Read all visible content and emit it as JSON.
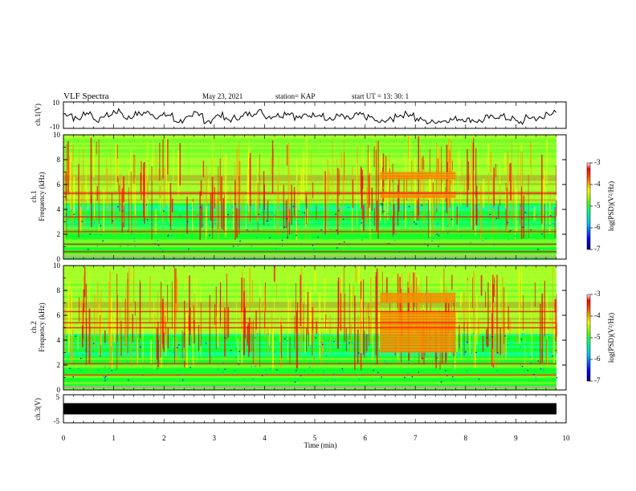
{
  "header": {
    "title": "VLF  Spectra",
    "date": "May 23, 2021",
    "station": "station= KAP",
    "start_ut": "start  UT  =   13: 30: 1"
  },
  "chart_data": [
    {
      "type": "line",
      "name": "ch1-waveform",
      "ylabel": "ch.1(V)",
      "ylim": [
        -10,
        10
      ],
      "yticks": [
        "10",
        "-10"
      ],
      "x": [
        0,
        0.2,
        0.4,
        0.6,
        0.8,
        1.0,
        1.2,
        1.4,
        1.6,
        1.8,
        2.0,
        2.2,
        2.4,
        2.6,
        2.8,
        3.0,
        3.2,
        3.4,
        3.6,
        3.8,
        4.0,
        4.2,
        4.4,
        4.6,
        4.8,
        5.0,
        5.2,
        5.4,
        5.6,
        5.8,
        6.0,
        6.2,
        6.4,
        6.6,
        6.8,
        7.0,
        7.2,
        7.4,
        7.6,
        7.8,
        8.0,
        8.2,
        8.4,
        8.6,
        8.8,
        9.0,
        9.2,
        9.4,
        9.6,
        9.8
      ],
      "y": [
        1,
        -3,
        2,
        -4,
        0,
        3,
        -2,
        1,
        2,
        -1,
        0,
        -5,
        -3,
        2,
        -6,
        0,
        -4,
        -2,
        1,
        3,
        -1,
        0,
        2,
        -2,
        0,
        1,
        -4,
        -1,
        -3,
        0,
        -2,
        -6,
        -4,
        0,
        1,
        -4,
        -6,
        -5,
        -4,
        -3,
        -4,
        -5,
        -2,
        -1,
        -3,
        -6,
        -2,
        -3,
        2,
        1
      ]
    },
    {
      "type": "heatmap",
      "name": "ch1-spectrogram",
      "ylabel": "ch.1 Frequency (kHz)",
      "ylim": [
        0,
        10
      ],
      "yticks": [
        "0",
        "2",
        "4",
        "6",
        "8",
        "10"
      ],
      "colorbar": {
        "label": "log(PSD)(V²/Hz)",
        "range": [
          -7,
          -3
        ],
        "ticks": [
          "-3",
          "-4",
          "-5",
          "-6",
          "-7"
        ]
      },
      "features": [
        {
          "kind": "band",
          "freq_khz": [
            6.4,
            7.0
          ],
          "time_min": [
            6.3,
            7.8
          ]
        },
        {
          "kind": "band",
          "freq_khz": [
            4.9,
            5.4
          ],
          "time_min": [
            6.3,
            7.8
          ]
        },
        {
          "kind": "line",
          "freq_khz": 5.3
        },
        {
          "kind": "line",
          "freq_khz": 3.4
        },
        {
          "kind": "line",
          "freq_khz": 2.2
        },
        {
          "kind": "line",
          "freq_khz": 1.2
        },
        {
          "kind": "line",
          "freq_khz": 0.6
        }
      ]
    },
    {
      "type": "heatmap",
      "name": "ch2-spectrogram",
      "ylabel": "ch.2 Frequency (kHz)",
      "ylim": [
        0,
        10
      ],
      "yticks": [
        "0",
        "2",
        "4",
        "6",
        "8",
        "10"
      ],
      "colorbar": {
        "label": "log(PSD)(V²/Hz)",
        "range": [
          -7,
          -3
        ],
        "ticks": [
          "-3",
          "-4",
          "-5",
          "-6",
          "-7"
        ]
      },
      "features": [
        {
          "kind": "band",
          "freq_khz": [
            7.0,
            7.8
          ],
          "time_min": [
            6.3,
            7.8
          ]
        },
        {
          "kind": "band",
          "freq_khz": [
            3.0,
            6.3
          ],
          "time_min": [
            6.3,
            7.8
          ]
        },
        {
          "kind": "line",
          "freq_khz": 6.3
        },
        {
          "kind": "line",
          "freq_khz": 5.4
        },
        {
          "kind": "line",
          "freq_khz": 5.0
        },
        {
          "kind": "line",
          "freq_khz": 2.1
        },
        {
          "kind": "line",
          "freq_khz": 1.2
        }
      ]
    },
    {
      "type": "line",
      "name": "ch3-waveform",
      "ylabel": "ch.3(V)",
      "ylim": [
        -5,
        5
      ],
      "yticks": [
        "5",
        "-5"
      ],
      "level_v": 0,
      "amplitude_v": 0.8
    }
  ],
  "x_axis": {
    "label": "Time (min)",
    "range": [
      0,
      10
    ],
    "ticks": [
      "0",
      "1",
      "2",
      "3",
      "4",
      "5",
      "6",
      "7",
      "8",
      "9",
      "10"
    ]
  },
  "colors": {
    "colormap": [
      "#000090",
      "#0000ff",
      "#00a0ff",
      "#00ffb0",
      "#00ff00",
      "#a0ff00",
      "#ffff00",
      "#ffa000",
      "#ff0000",
      "#ffffff"
    ]
  }
}
